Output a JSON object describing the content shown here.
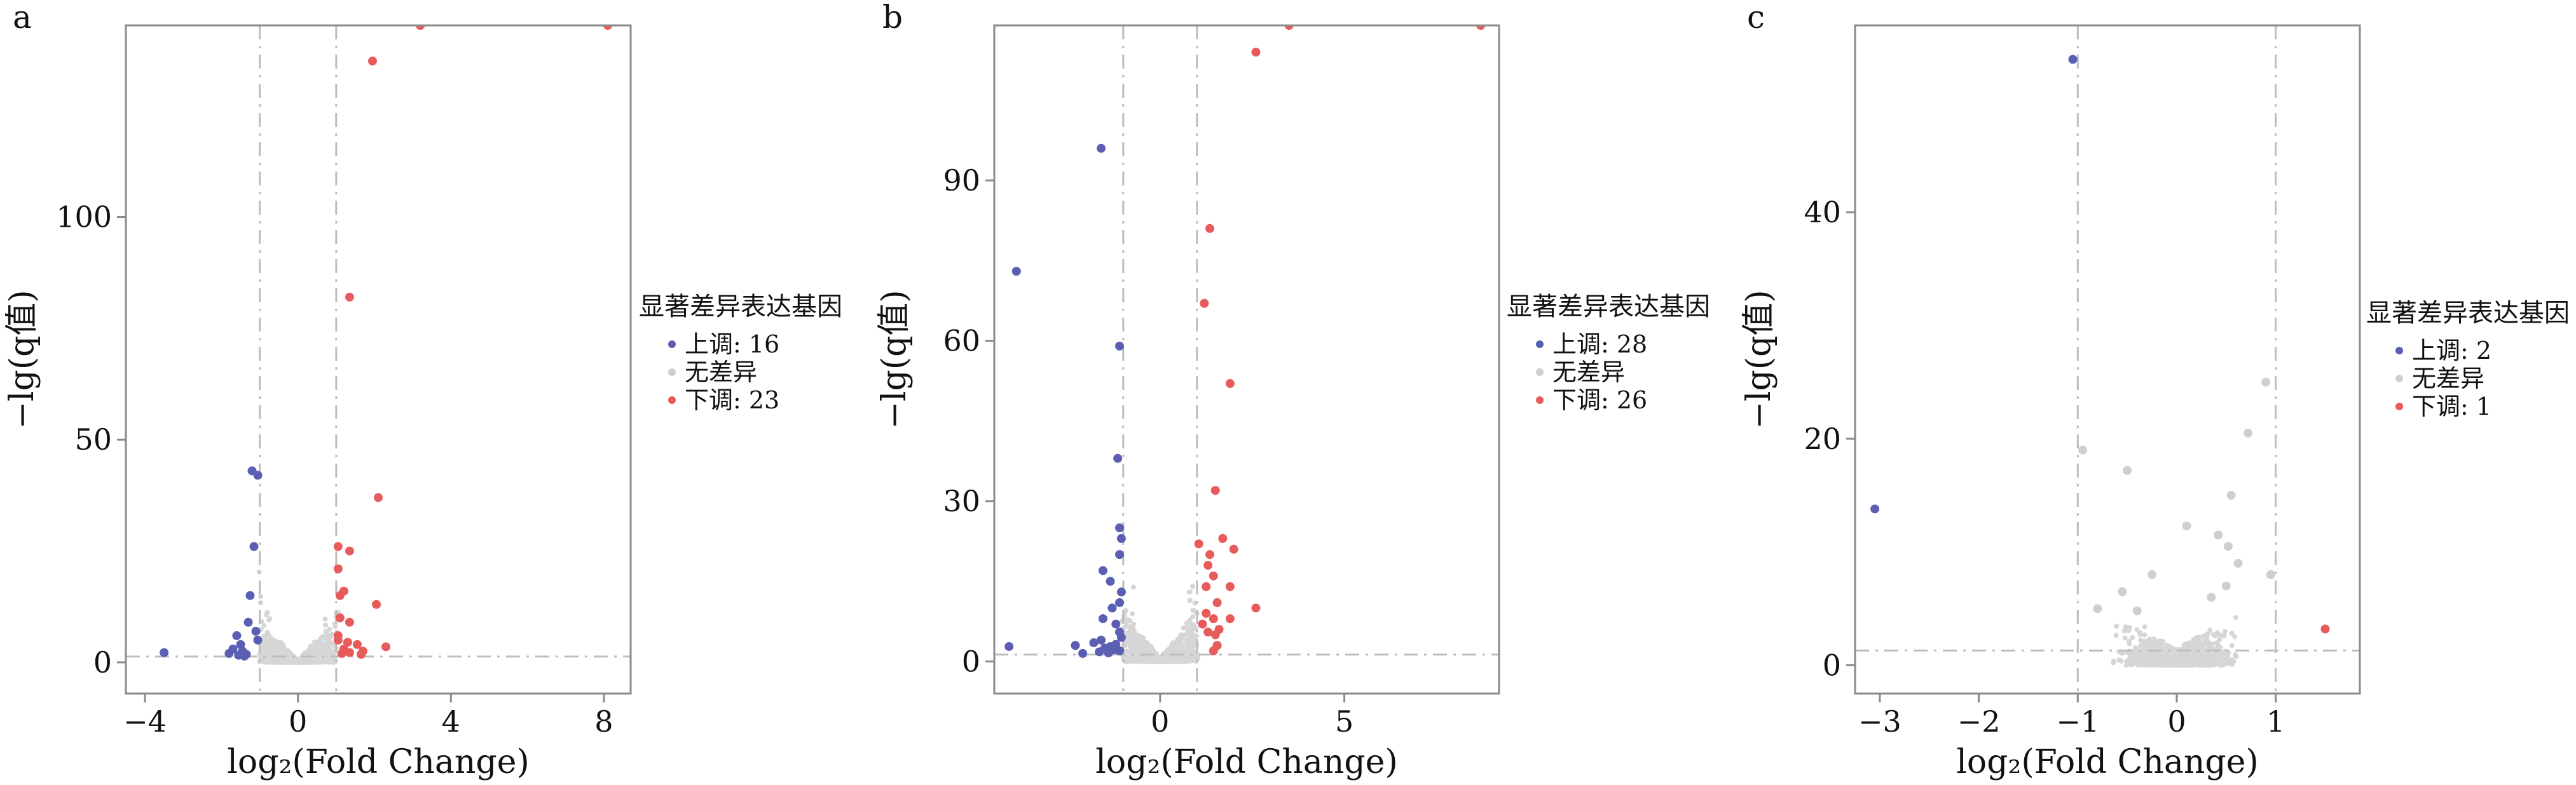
{
  "figure": {
    "panels": [
      "a",
      "b",
      "c"
    ]
  },
  "colors": {
    "up": "#5a5fb3",
    "none": "#cfcfcf",
    "down": "#e85b5b",
    "axis_frame": "#8a8a8a",
    "threshold_line": "#bdbdbd"
  },
  "chart_data": [
    {
      "type": "scatter",
      "panel": "a",
      "xlabel": "log₂(Fold Change)",
      "ylabel": "−lg(q值)",
      "xlim": [
        -4.5,
        8.7
      ],
      "ylim": [
        -7,
        143
      ],
      "xticks": [
        -4,
        0,
        4,
        8
      ],
      "yticks": [
        0,
        50,
        100
      ],
      "grid": false,
      "thresholds": {
        "x": [
          -1,
          1
        ],
        "y": 1.3
      },
      "legend": {
        "title": "显著差异表达基因",
        "position": "right",
        "items": [
          {
            "key": "up",
            "label": "上调: 16"
          },
          {
            "key": "none",
            "label": "无差异"
          },
          {
            "key": "down",
            "label": "下调: 23"
          }
        ]
      },
      "series": [
        {
          "key": "up",
          "points": [
            [
              -3.5,
              2.2
            ],
            [
              -1.2,
              43
            ],
            [
              -1.05,
              42
            ],
            [
              -1.15,
              26
            ],
            [
              -1.25,
              15
            ],
            [
              -1.3,
              9
            ],
            [
              -1.1,
              7
            ],
            [
              -1.05,
              5
            ],
            [
              -1.6,
              6
            ],
            [
              -1.5,
              4
            ],
            [
              -1.7,
              3
            ],
            [
              -1.45,
              2.5
            ],
            [
              -1.35,
              1.8
            ],
            [
              -1.8,
              2
            ],
            [
              -1.55,
              1.6
            ],
            [
              -1.4,
              1.4
            ]
          ]
        },
        {
          "key": "down",
          "points": [
            [
              3.2,
              143
            ],
            [
              8.1,
              143
            ],
            [
              1.95,
              135
            ],
            [
              1.35,
              82
            ],
            [
              2.1,
              37
            ],
            [
              1.05,
              26
            ],
            [
              1.35,
              25
            ],
            [
              1.05,
              21
            ],
            [
              1.2,
              16
            ],
            [
              1.1,
              15
            ],
            [
              2.05,
              13
            ],
            [
              1.1,
              10
            ],
            [
              1.35,
              9
            ],
            [
              1.05,
              6
            ],
            [
              1.05,
              5
            ],
            [
              1.3,
              4.5
            ],
            [
              1.55,
              4
            ],
            [
              2.3,
              3.5
            ],
            [
              1.2,
              3
            ],
            [
              1.7,
              2.5
            ],
            [
              1.35,
              2.2
            ],
            [
              1.15,
              2
            ],
            [
              1.65,
              1.8
            ]
          ]
        }
      ]
    },
    {
      "type": "scatter",
      "panel": "b",
      "xlabel": "log₂(Fold Change)",
      "ylabel": "−lg(q值)",
      "xlim": [
        -4.5,
        9.2
      ],
      "ylim": [
        -6,
        119
      ],
      "xticks": [
        0,
        5
      ],
      "yticks": [
        0,
        30,
        60,
        90
      ],
      "grid": false,
      "thresholds": {
        "x": [
          -1,
          1
        ],
        "y": 1.3
      },
      "legend": {
        "title": "显著差异表达基因",
        "position": "right",
        "items": [
          {
            "key": "up",
            "label": "上调: 28"
          },
          {
            "key": "none",
            "label": "无差异"
          },
          {
            "key": "down",
            "label": "下调: 26"
          }
        ]
      },
      "series": [
        {
          "key": "up",
          "points": [
            [
              -1.6,
              96
            ],
            [
              -3.9,
              73
            ],
            [
              -1.1,
              59
            ],
            [
              -1.15,
              38
            ],
            [
              -1.1,
              25
            ],
            [
              -1.05,
              23
            ],
            [
              -1.1,
              20
            ],
            [
              -1.55,
              17
            ],
            [
              -1.35,
              15
            ],
            [
              -1.05,
              13
            ],
            [
              -1.1,
              11
            ],
            [
              -1.3,
              10
            ],
            [
              -1.55,
              8
            ],
            [
              -1.2,
              7
            ],
            [
              -1.1,
              5.5
            ],
            [
              -1.05,
              4.5
            ],
            [
              -1.6,
              4
            ],
            [
              -1.8,
              3.5
            ],
            [
              -1.2,
              3.2
            ],
            [
              -2.3,
              3
            ],
            [
              -1.35,
              2.8
            ],
            [
              -1.5,
              2.5
            ],
            [
              -4.1,
              2.8
            ],
            [
              -1.25,
              2.2
            ],
            [
              -1.1,
              2
            ],
            [
              -1.65,
              1.8
            ],
            [
              -1.4,
              1.6
            ],
            [
              -2.1,
              1.5
            ]
          ]
        },
        {
          "key": "down",
          "points": [
            [
              3.5,
              119
            ],
            [
              8.7,
              119
            ],
            [
              2.6,
              114
            ],
            [
              1.35,
              81
            ],
            [
              1.2,
              67
            ],
            [
              1.9,
              52
            ],
            [
              1.5,
              32
            ],
            [
              1.7,
              23
            ],
            [
              1.05,
              22
            ],
            [
              2.0,
              21
            ],
            [
              1.35,
              20
            ],
            [
              1.3,
              18
            ],
            [
              1.45,
              16
            ],
            [
              1.25,
              14
            ],
            [
              1.9,
              14
            ],
            [
              1.55,
              11
            ],
            [
              2.6,
              10
            ],
            [
              1.25,
              9
            ],
            [
              1.45,
              8
            ],
            [
              1.9,
              8
            ],
            [
              1.15,
              7
            ],
            [
              1.6,
              6
            ],
            [
              1.3,
              5.5
            ],
            [
              1.5,
              5
            ],
            [
              1.55,
              3
            ],
            [
              1.45,
              2
            ]
          ]
        }
      ]
    },
    {
      "type": "scatter",
      "panel": "c",
      "xlabel": "log₂(Fold Change)",
      "ylabel": "−lg(q值)",
      "xlim": [
        -3.25,
        1.85
      ],
      "ylim": [
        -2.5,
        56.5
      ],
      "xticks": [
        -3,
        -2,
        -1,
        0,
        1
      ],
      "yticks": [
        0,
        20,
        40
      ],
      "grid": false,
      "thresholds": {
        "x": [
          -1,
          1
        ],
        "y": 1.3
      },
      "legend": {
        "title": "显著差异表达基因",
        "position": "right",
        "items": [
          {
            "key": "up",
            "label": "上调: 2"
          },
          {
            "key": "none",
            "label": "无差异"
          },
          {
            "key": "down",
            "label": "下调: 1"
          }
        ]
      },
      "series": [
        {
          "key": "up",
          "points": [
            [
              -1.05,
              53.5
            ],
            [
              -3.05,
              13.8
            ]
          ]
        },
        {
          "key": "down",
          "points": [
            [
              1.5,
              3.2
            ]
          ]
        },
        {
          "key": "none",
          "points": [
            [
              0.9,
              25
            ],
            [
              0.72,
              20.5
            ],
            [
              -0.95,
              19
            ],
            [
              -0.5,
              17.2
            ],
            [
              0.55,
              15
            ],
            [
              0.42,
              11.5
            ],
            [
              0.1,
              12.3
            ],
            [
              0.52,
              10.5
            ],
            [
              -0.25,
              8
            ],
            [
              0.62,
              9
            ],
            [
              0.95,
              8
            ],
            [
              -0.55,
              6.5
            ],
            [
              0.5,
              7
            ],
            [
              -0.8,
              5
            ],
            [
              0.35,
              6
            ],
            [
              -0.4,
              4.8
            ]
          ]
        }
      ]
    }
  ]
}
